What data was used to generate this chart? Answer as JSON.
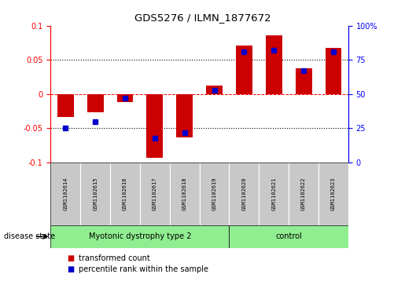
{
  "title": "GDS5276 / ILMN_1877672",
  "samples": [
    "GSM1102614",
    "GSM1102615",
    "GSM1102616",
    "GSM1102617",
    "GSM1102618",
    "GSM1102619",
    "GSM1102620",
    "GSM1102621",
    "GSM1102622",
    "GSM1102623"
  ],
  "transformed_count": [
    -0.033,
    -0.027,
    -0.012,
    -0.093,
    -0.063,
    0.012,
    0.071,
    0.086,
    0.038,
    0.068
  ],
  "percentile_rank": [
    25,
    30,
    47,
    18,
    22,
    53,
    81,
    82,
    67,
    81
  ],
  "group1_label": "Myotonic dystrophy type 2",
  "group1_count": 6,
  "group2_label": "control",
  "group2_count": 4,
  "bar_color": "#CC0000",
  "dot_color": "#0000CC",
  "green_color": "#90EE90",
  "gray_color": "#C8C8C8",
  "ylim_left": [
    -0.1,
    0.1
  ],
  "ylim_right": [
    0,
    100
  ],
  "yticks_left": [
    -0.1,
    -0.05,
    0,
    0.05,
    0.1
  ],
  "ytick_labels_left": [
    "-0.1",
    "-0.05",
    "0",
    "0.05",
    "0.1"
  ],
  "yticks_right": [
    0,
    25,
    50,
    75,
    100
  ],
  "ytick_labels_right": [
    "0",
    "25",
    "50",
    "75",
    "100%"
  ],
  "label_red": "transformed count",
  "label_blue": "percentile rank within the sample",
  "disease_state_label": "disease state",
  "bar_width": 0.55,
  "dot_size": 5
}
